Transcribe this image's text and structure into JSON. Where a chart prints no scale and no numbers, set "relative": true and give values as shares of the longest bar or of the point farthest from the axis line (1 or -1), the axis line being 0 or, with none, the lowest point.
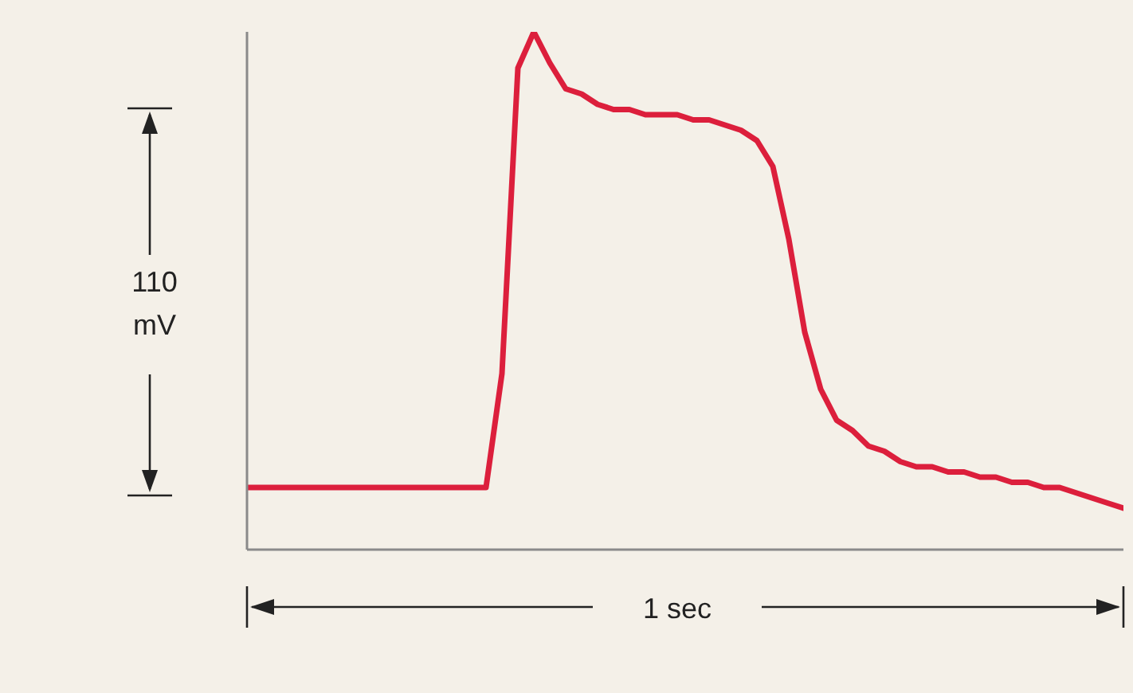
{
  "chart_data": {
    "type": "line",
    "relative": true,
    "grid": false,
    "legend": false,
    "marker": "none",
    "line_style": "solid",
    "annotations": [
      "110 mV",
      "1 sec"
    ],
    "categories": [
      null,
      null,
      null,
      null,
      null,
      null,
      null,
      null,
      null,
      null,
      null,
      null,
      null,
      null,
      null,
      null,
      null,
      null,
      null,
      null,
      null,
      null,
      null,
      null,
      null,
      null,
      null,
      null,
      null,
      null,
      null,
      null,
      null,
      null,
      null,
      null,
      null,
      null,
      null,
      null,
      null,
      null,
      null,
      null,
      null,
      null,
      null,
      null,
      null,
      null,
      null,
      null,
      null,
      null,
      null,
      null
    ],
    "series": [
      {
        "color": "#dc1f3c",
        "values": [
          0.12,
          0.12,
          0.12,
          0.12,
          0.12,
          0.12,
          0.12,
          0.12,
          0.12,
          0.12,
          0.12,
          0.12,
          0.12,
          0.12,
          0.12,
          0.12,
          0.34,
          0.93,
          1.0,
          0.94,
          0.89,
          0.88,
          0.86,
          0.85,
          0.85,
          0.84,
          0.84,
          0.84,
          0.83,
          0.83,
          0.82,
          0.81,
          0.79,
          0.74,
          0.6,
          0.42,
          0.31,
          0.25,
          0.23,
          0.2,
          0.19,
          0.17,
          0.16,
          0.16,
          0.15,
          0.15,
          0.14,
          0.14,
          0.13,
          0.13,
          0.12,
          0.12,
          0.11,
          0.1,
          0.09,
          0.08
        ]
      }
    ]
  }
}
